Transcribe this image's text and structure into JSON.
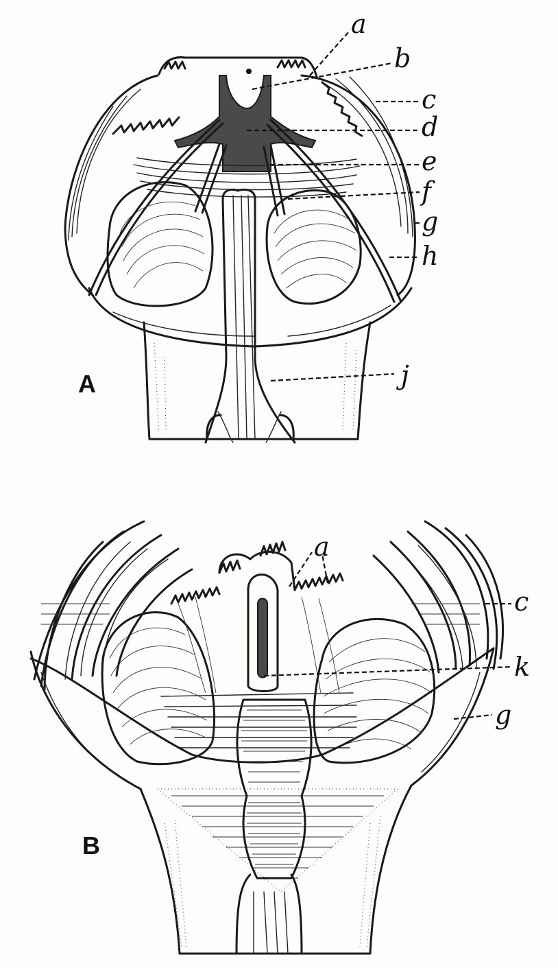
{
  "figure": {
    "panels": [
      {
        "id": "A",
        "label": "A",
        "callouts": [
          "a",
          "b",
          "c",
          "d",
          "e",
          "f",
          "g",
          "h",
          "j"
        ]
      },
      {
        "id": "B",
        "label": "B",
        "callouts": [
          "a",
          "c",
          "k",
          "g"
        ]
      }
    ]
  }
}
